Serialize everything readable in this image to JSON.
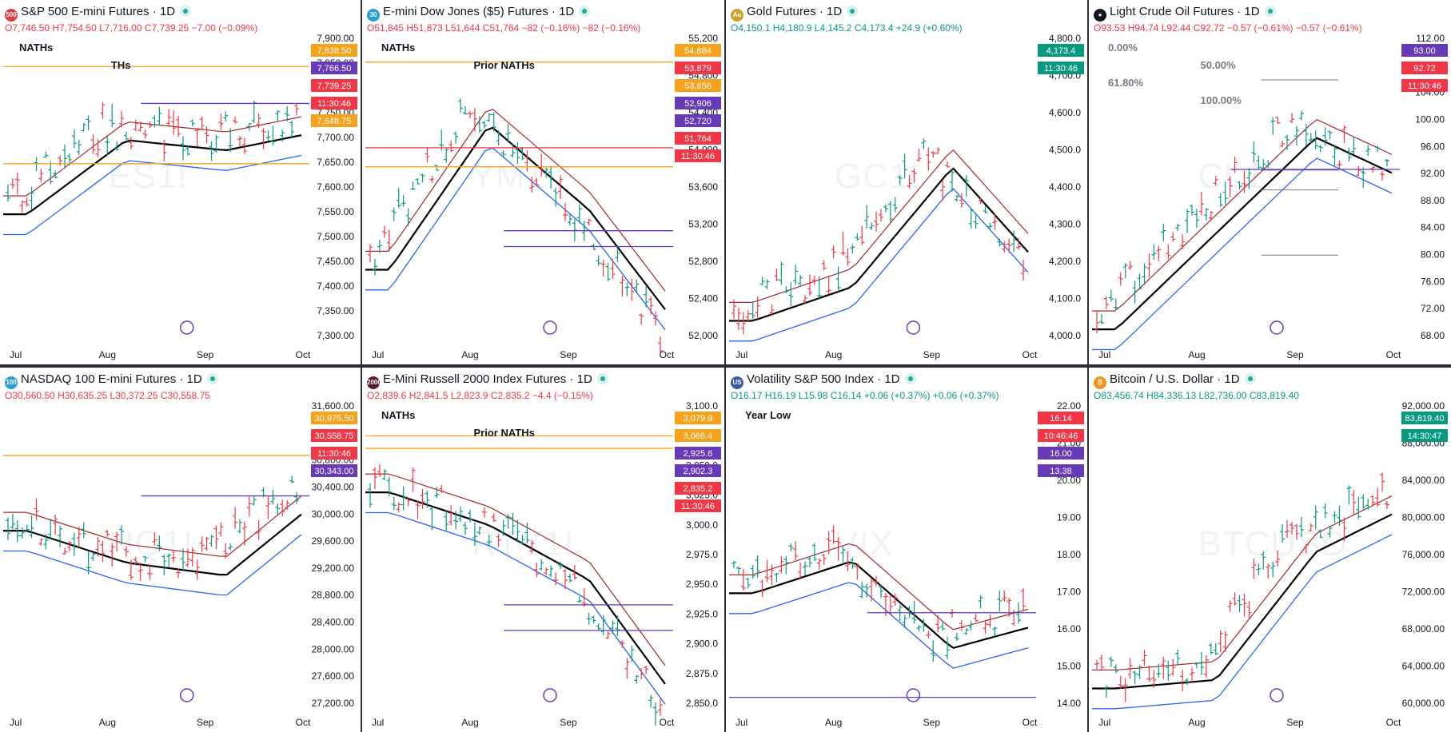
{
  "colors": {
    "up": "#089981",
    "down": "#f23645",
    "bg": "#ffffff",
    "grid_sep": "#2a2e39",
    "orange": "#f7a21b",
    "purple": "#673ab7",
    "dma20": "#a52a2a",
    "dma50": "#000000",
    "dma200": "#2962ff",
    "price_tag": "#f23645"
  },
  "icons": {
    "live": "live-dot-icon",
    "replay": "arrow-circle-icon",
    "settings": "hexagon-settings-icon",
    "brand": "tradingview-logo-icon"
  },
  "panels": [
    {
      "id": "es",
      "title": "S&P 500 E-mini Futures · 1D",
      "symbol_badge": "500",
      "badge_color": "#e23b3b",
      "watermark": "ES1!",
      "ohlc": {
        "o": "O7,746.50",
        "h": "H7,754.50",
        "l": "L7,716.00",
        "c": "C7,739.25",
        "chg": "−7.00 (−0.09%)",
        "dir": "dn"
      },
      "y_ticks": [
        "7,900.00",
        "7,850.00",
        "7,800.00",
        "7,750.00",
        "7,700.00",
        "7,650.00",
        "7,600.00",
        "7,550.00",
        "7,500.00",
        "7,450.00",
        "7,400.00",
        "7,350.00",
        "7,300.00"
      ],
      "x_ticks": [
        "Jul",
        "Aug",
        "Sep",
        "Oct"
      ],
      "annotations": [
        "NATHs",
        "THs"
      ],
      "level_tags": [
        {
          "text": "7,838.50",
          "kind": "orange"
        },
        {
          "text": "7,766.50",
          "kind": "purple"
        },
        {
          "text": "7,739.25",
          "kind": "price"
        },
        {
          "text": "11:30:46",
          "kind": "price"
        },
        {
          "text": "7,648.75",
          "kind": "orange"
        }
      ]
    },
    {
      "id": "ym",
      "title": "E-mini Dow Jones ($5) Futures · 1D",
      "symbol_badge": "30",
      "badge_color": "#2a9fd6",
      "watermark": "YM1!",
      "ohlc": {
        "o": "O51,845",
        "h": "H51,873",
        "l": "L51,644",
        "c": "C51,764",
        "chg": "−82 (−0.16%) −82 (−0.16%)",
        "dir": "dn"
      },
      "y_ticks": [
        "55,200",
        "54,800",
        "54,400",
        "54,000",
        "53,600",
        "53,200",
        "52,800",
        "52,400",
        "52,000"
      ],
      "x_ticks": [
        "Jul",
        "Aug",
        "Sep",
        "Oct"
      ],
      "annotations": [
        "NATHs",
        "Prior NATHs"
      ],
      "level_tags": [
        {
          "text": "54,884",
          "kind": "orange"
        },
        {
          "text": "53,879",
          "kind": "price"
        },
        {
          "text": "53,656",
          "kind": "orange"
        },
        {
          "text": "52,906",
          "kind": "purple"
        },
        {
          "text": "52,720",
          "kind": "purple"
        },
        {
          "text": "51,764",
          "kind": "price"
        },
        {
          "text": "11:30:46",
          "kind": "price"
        }
      ]
    },
    {
      "id": "gc",
      "title": "Gold Futures · 1D",
      "symbol_badge": "Au",
      "badge_color": "#c9a227",
      "watermark": "GC1!",
      "ohlc": {
        "o": "O4,150.1",
        "h": "H4,180.9",
        "l": "L4,145.2",
        "c": "C4,173.4",
        "chg": "+24.9 (+0.60%)",
        "dir": "up"
      },
      "y_ticks": [
        "4,800.0",
        "4,700.0",
        "4,600.0",
        "4,500.0",
        "4,400.0",
        "4,300.0",
        "4,200.0",
        "4,100.0",
        "4,000.0"
      ],
      "x_ticks": [
        "Jul",
        "Aug",
        "Sep",
        "Oct"
      ],
      "annotations": [],
      "level_tags": [
        {
          "text": "4,173.4",
          "kind": "up"
        },
        {
          "text": "11:30:46",
          "kind": "up"
        }
      ]
    },
    {
      "id": "cl",
      "title": "Light Crude Oil Futures · 1D",
      "symbol_badge": "●",
      "badge_color": "#131722",
      "watermark": "CL1!",
      "ohlc": {
        "o": "O93.53",
        "h": "H94.74",
        "l": "L92.44",
        "c": "C92.72",
        "chg": "−0.57 (−0.61%) −0.57 (−0.61%)",
        "dir": "dn"
      },
      "y_ticks": [
        "112.00",
        "108.00",
        "104.00",
        "100.00",
        "96.00",
        "92.00",
        "88.00",
        "84.00",
        "80.00",
        "76.00",
        "72.00",
        "68.00"
      ],
      "x_ticks": [
        "Jul",
        "Aug",
        "Sep",
        "Oct"
      ],
      "annotations": [
        "0.00%",
        "50.00%",
        "61.80%",
        "100.00%"
      ],
      "level_tags": [
        {
          "text": "93.00",
          "kind": "purple"
        },
        {
          "text": "92.72",
          "kind": "price"
        },
        {
          "text": "11:30:46",
          "kind": "price"
        }
      ]
    },
    {
      "id": "nq",
      "title": "NASDAQ 100 E-mini Futures · 1D",
      "symbol_badge": "100",
      "badge_color": "#2a9fd6",
      "watermark": "NQ1!",
      "ohlc": {
        "o": "O30,560.50",
        "h": "H30,635.25",
        "l": "L30,372.25",
        "c": "C30,558.75",
        "chg": "",
        "dir": "dn"
      },
      "y_ticks": [
        "31,600.00",
        "31,200.00",
        "30,800.00",
        "30,400.00",
        "30,000.00",
        "29,600.00",
        "29,200.00",
        "28,800.00",
        "28,400.00",
        "28,000.00",
        "27,600.00",
        "27,200.00"
      ],
      "x_ticks": [
        "Jul",
        "Aug",
        "Sep",
        "Oct"
      ],
      "annotations": [],
      "level_tags": [
        {
          "text": "30,975.50",
          "kind": "orange"
        },
        {
          "text": "30,558.75",
          "kind": "price"
        },
        {
          "text": "11:30:46",
          "kind": "price"
        },
        {
          "text": "30,343.00",
          "kind": "purple"
        }
      ]
    },
    {
      "id": "rty",
      "title": "E-Mini Russell 2000 Index Futures · 1D",
      "symbol_badge": "2000",
      "badge_color": "#5b1a2a",
      "watermark": "RTY1!",
      "ohlc": {
        "o": "O2,839.6",
        "h": "H2,841.5",
        "l": "L2,823.9",
        "c": "C2,835.2",
        "chg": "−4.4 (−0.15%)",
        "dir": "dn"
      },
      "y_ticks": [
        "3,100.0",
        "3,075.0",
        "3,050.0",
        "3,025.0",
        "3,000.0",
        "2,975.0",
        "2,950.0",
        "2,925.0",
        "2,900.0",
        "2,875.0",
        "2,850.0"
      ],
      "x_ticks": [
        "Jul",
        "Aug",
        "Sep",
        "Oct"
      ],
      "annotations": [
        "NATHs",
        "Prior NATHs"
      ],
      "level_tags": [
        {
          "text": "3,079.9",
          "kind": "orange"
        },
        {
          "text": "3,068.4",
          "kind": "orange"
        },
        {
          "text": "2,925.6",
          "kind": "purple"
        },
        {
          "text": "2,902.3",
          "kind": "purple"
        },
        {
          "text": "2,835.2",
          "kind": "price"
        },
        {
          "text": "11:30:46",
          "kind": "price"
        }
      ]
    },
    {
      "id": "vix",
      "title": "Volatility S&P 500 Index · 1D",
      "symbol_badge": "US",
      "badge_color": "#3c5aa6",
      "watermark": "VIX",
      "ohlc": {
        "o": "O16.17",
        "h": "H16.19",
        "l": "L15.98",
        "c": "C16.14",
        "chg": "+0.06 (+0.37%) +0.06 (+0.37%)",
        "dir": "up"
      },
      "y_ticks": [
        "22.00",
        "21.00",
        "20.00",
        "19.00",
        "18.00",
        "17.00",
        "16.00",
        "15.00",
        "14.00"
      ],
      "x_ticks": [
        "Jul",
        "Aug",
        "Sep",
        "Oct"
      ],
      "annotations": [
        "Year Low"
      ],
      "level_tags": [
        {
          "text": "16.14",
          "kind": "price"
        },
        {
          "text": "10:46:46",
          "kind": "price"
        },
        {
          "text": "16.00",
          "kind": "purple"
        },
        {
          "text": "13.38",
          "kind": "purple"
        }
      ]
    },
    {
      "id": "btc",
      "title": "Bitcoin / U.S. Dollar · 1D",
      "symbol_badge": "₿",
      "badge_color": "#f7931a",
      "watermark": "BTCUSD",
      "ohlc": {
        "o": "O83,456.74",
        "h": "H84,336.13",
        "l": "L82,736.00",
        "c": "C83,819.40",
        "chg": "",
        "dir": "up"
      },
      "y_ticks": [
        "92,000.00",
        "88,000.00",
        "84,000.00",
        "80,000.00",
        "76,000.00",
        "72,000.00",
        "68,000.00",
        "64,000.00",
        "60,000.00"
      ],
      "x_ticks": [
        "Jul",
        "Aug",
        "Sep",
        "Oct"
      ],
      "annotations": [],
      "level_tags": [
        {
          "text": "83,819.40",
          "kind": "up"
        },
        {
          "text": "14:30:47",
          "kind": "up"
        }
      ]
    }
  ],
  "chart_data": [
    {
      "type": "line",
      "symbol": "ES1!",
      "title": "S&P 500 E-mini Futures · 1D",
      "ylim": [
        7300,
        7900
      ],
      "levels": {
        "NATHs": 7838.5,
        "purple": 7766.5,
        "orange_low": 7648.75
      },
      "last": 7739.25,
      "series": [
        {
          "x": [
            "Jul",
            "Aug",
            "Sep",
            "Oct"
          ],
          "values": [
            7575,
            7720,
            7700,
            7739
          ]
        }
      ]
    },
    {
      "type": "line",
      "symbol": "YM1!",
      "title": "E-mini Dow Jones ($5) Futures · 1D",
      "ylim": [
        51600,
        55200
      ],
      "levels": {
        "NATHs": 54884,
        "Prior NATHs": 53656,
        "purple": [
          52906,
          52720
        ],
        "red": 53879
      },
      "last": 51764,
      "series": [
        {
          "x": [
            "Jul",
            "Aug",
            "Sep",
            "Oct"
          ],
          "values": [
            52600,
            54300,
            53300,
            51764
          ]
        }
      ]
    },
    {
      "type": "line",
      "symbol": "GC1!",
      "title": "Gold Futures · 1D",
      "ylim": [
        3950,
        4850
      ],
      "last": 4173.4,
      "series": [
        {
          "x": [
            "Jul",
            "Aug",
            "Sep",
            "Oct"
          ],
          "values": [
            4050,
            4150,
            4500,
            4173.4
          ]
        }
      ]
    },
    {
      "type": "line",
      "symbol": "CL1!",
      "title": "Light Crude Oil Futures · 1D",
      "ylim": [
        66,
        114
      ],
      "levels": {
        "purple": 93.0
      },
      "fib": {
        "0.00%": 107,
        "50.00%": 92.9,
        "61.80%": 89.8,
        "100.00%": 79.6
      },
      "last": 92.72,
      "series": [
        {
          "x": [
            "Jul",
            "Aug",
            "Sep",
            "Oct"
          ],
          "values": [
            70,
            85,
            100,
            92.72
          ]
        }
      ]
    },
    {
      "type": "line",
      "symbol": "NQ1!",
      "title": "NASDAQ 100 E-mini Futures · 1D",
      "ylim": [
        27000,
        31800
      ],
      "levels": {
        "orange": 30975.5,
        "purple": 30343.0
      },
      "last": 30558.75,
      "series": [
        {
          "x": [
            "Jul",
            "Aug",
            "Sep",
            "Oct"
          ],
          "values": [
            30000,
            29500,
            29300,
            30558.75
          ]
        }
      ]
    },
    {
      "type": "line",
      "symbol": "RTY1!",
      "title": "E-Mini Russell 2000 Index Futures · 1D",
      "ylim": [
        2830,
        3110
      ],
      "levels": {
        "NATHs": 3079.9,
        "Prior NATHs": 3068.4,
        "purple": [
          2925.6,
          2902.3
        ]
      },
      "last": 2835.2,
      "series": [
        {
          "x": [
            "Jul",
            "Aug",
            "Sep",
            "Oct"
          ],
          "values": [
            3040,
            3010,
            2960,
            2835.2
          ]
        }
      ]
    },
    {
      "type": "line",
      "symbol": "VIX",
      "title": "Volatility S&P 500 Index · 1D",
      "ylim": [
        13.0,
        22.5
      ],
      "levels": {
        "purple": 16.0,
        "Year Low": 13.38
      },
      "last": 16.14,
      "series": [
        {
          "x": [
            "Jul",
            "Aug",
            "Sep",
            "Oct"
          ],
          "values": [
            17.0,
            18.0,
            15.3,
            16.14
          ]
        }
      ]
    },
    {
      "type": "line",
      "symbol": "BTCUSD",
      "title": "Bitcoin / U.S. Dollar · 1D",
      "ylim": [
        58000,
        94000
      ],
      "last": 83819.4,
      "series": [
        {
          "x": [
            "Jul",
            "Aug",
            "Sep",
            "Oct"
          ],
          "values": [
            62000,
            63000,
            78000,
            83819.4
          ]
        }
      ]
    }
  ]
}
